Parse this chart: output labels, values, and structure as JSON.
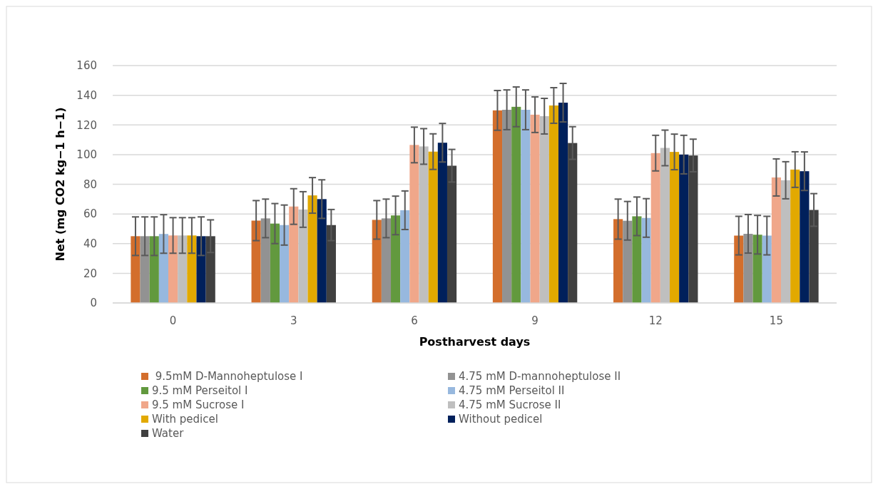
{
  "chart_data": {
    "type": "bar",
    "xlabel": "Postharvest days",
    "ylabel": "Net (mg CO2 kg−1 h−1)",
    "categories": [
      "0",
      "3",
      "6",
      "9",
      "12",
      "15"
    ],
    "ylim": [
      0,
      160
    ],
    "yticks": [
      0,
      20,
      40,
      60,
      80,
      100,
      120,
      140,
      160
    ],
    "grid": "y",
    "legend": "bottom",
    "series": [
      {
        "name": " 9.5mM D-Mannoheptulose I",
        "color": "#d36e2c",
        "values": [
          45,
          55.5,
          56,
          129.8,
          56.5,
          45.4
        ],
        "errors": [
          13,
          13.5,
          13,
          13.4,
          13.5,
          13
        ]
      },
      {
        "name": "4.75 mM D-mannoheptulose II",
        "color": "#929292",
        "values": [
          45,
          57,
          57,
          130.2,
          55.4,
          46.6
        ],
        "errors": [
          13,
          13,
          13,
          13.4,
          13,
          13
        ]
      },
      {
        "name": "9.5 mM Perseitol I",
        "color": "#62993e",
        "values": [
          45,
          53.5,
          59,
          132.2,
          58.4,
          46
        ],
        "errors": [
          13,
          13.5,
          13,
          13.4,
          13,
          13
        ]
      },
      {
        "name": "4.75 mM Perseitol II",
        "color": "#97b8de",
        "values": [
          46.5,
          52.5,
          62.5,
          130.2,
          57.3,
          45.4
        ],
        "errors": [
          13,
          13.5,
          13,
          13.4,
          13,
          13
        ]
      },
      {
        "name": "9.5 mM Sucrose I",
        "color": "#f0a78a",
        "values": [
          45.5,
          65,
          106.5,
          126.9,
          101,
          84.6
        ],
        "errors": [
          12,
          12,
          12,
          12,
          12,
          12.5
        ]
      },
      {
        "name": "4.75 mM Sucrose II",
        "color": "#bfbfbf",
        "values": [
          45.5,
          63,
          105.5,
          125.9,
          104.5,
          82.7
        ],
        "errors": [
          12,
          12,
          12,
          12,
          12,
          12.5
        ]
      },
      {
        "name": "With pedicel",
        "color": "#e2a900",
        "values": [
          45.5,
          72.5,
          102,
          133.1,
          101.8,
          89.9
        ],
        "errors": [
          12,
          12,
          12,
          12,
          12,
          12
        ]
      },
      {
        "name": "Without pedicel",
        "color": "#00205b",
        "values": [
          45,
          70,
          108,
          135,
          100,
          88.8
        ],
        "errors": [
          13,
          13,
          13,
          13,
          13,
          13
        ]
      },
      {
        "name": "Water",
        "color": "#404040",
        "values": [
          45,
          52.5,
          92.5,
          107.8,
          99.4,
          62.7
        ],
        "errors": [
          11,
          10.5,
          11,
          11,
          11,
          11
        ]
      }
    ]
  }
}
